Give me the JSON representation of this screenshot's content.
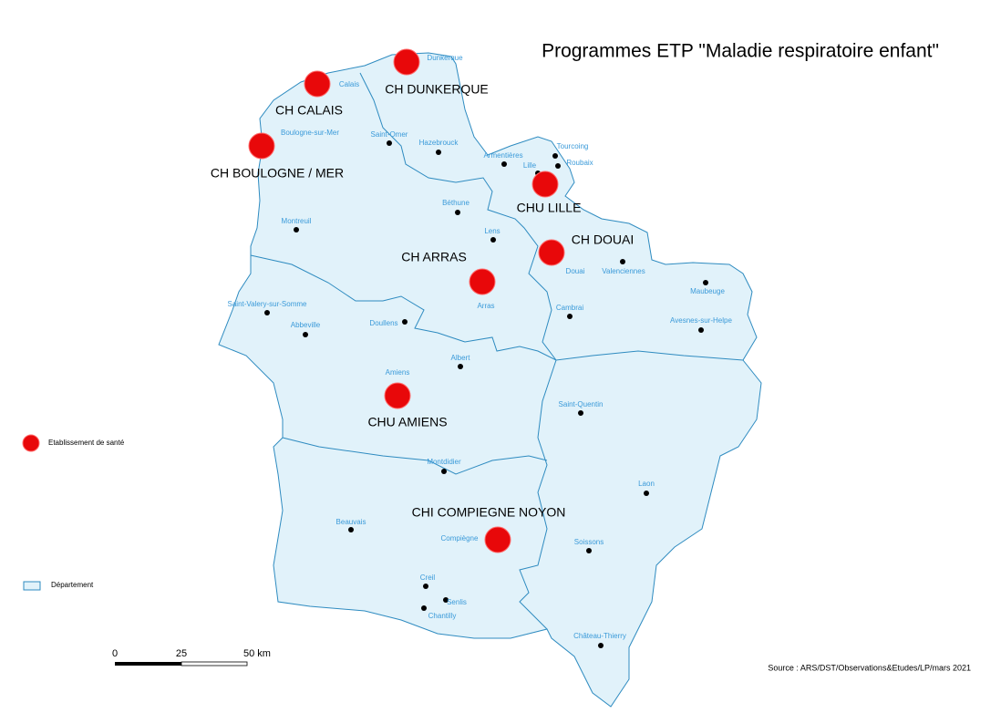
{
  "title": "Programmes ETP \"Maladie respiratoire enfant\"",
  "establishments": [
    "CH DUNKERQUE",
    "CH CALAIS",
    "CH BOULOGNE / MER",
    "CHU LILLE",
    "CH DOUAI",
    "CH ARRAS",
    "CHU AMIENS",
    "CHI COMPIEGNE NOYON"
  ],
  "cities": [
    "Dunkerque",
    "Calais",
    "Saint-Omer",
    "Hazebrouck",
    "Boulogne-sur-Mer",
    "Armentières",
    "Tourcoing",
    "Roubaix",
    "Lille",
    "Béthune",
    "Montreuil",
    "Lens",
    "Douai",
    "Valenciennes",
    "Maubeuge",
    "Arras",
    "Saint-Valery-sur-Somme",
    "Abbeville",
    "Cambrai",
    "Doullens",
    "Avesnes-sur-Helpe",
    "Albert",
    "Amiens",
    "Saint-Quentin",
    "Montdidier",
    "Laon",
    "Beauvais",
    "Compiègne",
    "Soissons",
    "Creil",
    "Senlis",
    "Chantilly",
    "Château-Thierry"
  ],
  "legend": {
    "establishment": "Etablissement de santé",
    "department": "Département"
  },
  "scale": [
    "0",
    "25",
    "50 km"
  ],
  "source": "Source : ARS/DST/Observations&Etudes/LP/mars 2021"
}
